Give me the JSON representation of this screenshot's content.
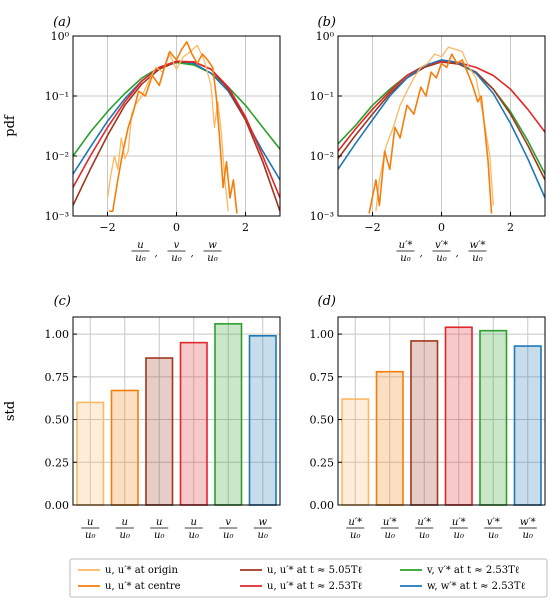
{
  "colors": {
    "origin": "#fdb863",
    "centre": "#f57e0b",
    "t505": "#a0361f",
    "t253_u": "#e3262a",
    "t253_v": "#2ca02c",
    "t253_w": "#1f77b4",
    "grid": "#c8c8c8"
  },
  "chart_data": [
    {
      "panel": "(a)",
      "type": "line",
      "ylabel": "pdf",
      "yscale": "log",
      "xlim": [
        -3,
        3
      ],
      "ylim": [
        0.001,
        1
      ],
      "x_ticks": [
        "−2",
        "0",
        "2"
      ],
      "y_ticks": [
        "10⁰",
        "10⁻¹",
        "10⁻²",
        "10⁻³"
      ],
      "xlabel_fracs": [
        [
          "u",
          "u₀"
        ],
        [
          "v",
          "u₀"
        ],
        [
          "w",
          "u₀"
        ]
      ],
      "series": [
        {
          "key": "t253_v",
          "x": [
            -3,
            -2.5,
            -2,
            -1.5,
            -1,
            -0.5,
            0,
            0.5,
            1,
            1.5,
            2,
            2.5,
            3
          ],
          "y": [
            0.01,
            0.025,
            0.055,
            0.11,
            0.2,
            0.3,
            0.36,
            0.33,
            0.24,
            0.14,
            0.07,
            0.03,
            0.013
          ]
        },
        {
          "key": "t253_w",
          "x": [
            -3,
            -2.5,
            -2,
            -1.5,
            -1,
            -0.5,
            0,
            0.5,
            1,
            1.5,
            2,
            2.5,
            3
          ],
          "y": [
            0.005,
            0.014,
            0.038,
            0.09,
            0.18,
            0.3,
            0.38,
            0.35,
            0.24,
            0.12,
            0.04,
            0.012,
            0.004
          ]
        },
        {
          "key": "t505",
          "x": [
            -3,
            -2.5,
            -2,
            -1.5,
            -1,
            -0.5,
            0,
            0.5,
            1,
            1.5,
            2,
            2.5,
            3
          ],
          "y": [
            0.0015,
            0.006,
            0.022,
            0.07,
            0.16,
            0.28,
            0.37,
            0.37,
            0.28,
            0.13,
            0.04,
            0.008,
            0.0012
          ]
        },
        {
          "key": "t253_u",
          "x": [
            -3,
            -2.5,
            -2,
            -1.5,
            -1,
            -0.5,
            0,
            0.5,
            1,
            1.5,
            2,
            2.5,
            3
          ],
          "y": [
            0.003,
            0.01,
            0.03,
            0.08,
            0.18,
            0.3,
            0.38,
            0.37,
            0.28,
            0.14,
            0.045,
            0.01,
            0.002
          ]
        },
        {
          "key": "origin",
          "x": [
            -2,
            -1.9,
            -1.8,
            -1.7,
            -1.6,
            -1.5,
            -1.4,
            -1.3,
            -1.2,
            -1.0,
            -0.8,
            -0.6,
            -0.4,
            -0.2,
            0,
            0.2,
            0.4,
            0.6,
            0.8,
            1.0,
            1.1,
            1.2,
            1.3,
            1.4,
            1.5
          ],
          "y": [
            0.002,
            0.005,
            0.01,
            0.006,
            0.02,
            0.009,
            0.012,
            0.05,
            0.07,
            0.1,
            0.18,
            0.3,
            0.25,
            0.5,
            0.28,
            0.45,
            0.55,
            0.7,
            0.4,
            0.15,
            0.03,
            0.08,
            0.025,
            0.004,
            0.0012
          ]
        },
        {
          "key": "centre",
          "x": [
            -1.95,
            -1.85,
            -1.7,
            -1.55,
            -1.4,
            -1.25,
            -1.1,
            -0.9,
            -0.7,
            -0.5,
            -0.35,
            -0.2,
            0,
            0.15,
            0.3,
            0.45,
            0.6,
            0.75,
            0.9,
            1.05,
            1.15,
            1.25,
            1.35,
            1.45,
            1.55,
            1.65,
            1.75
          ],
          "y": [
            0.0012,
            0.0012,
            0.004,
            0.012,
            0.03,
            0.055,
            0.12,
            0.1,
            0.22,
            0.15,
            0.3,
            0.55,
            0.4,
            0.6,
            0.8,
            0.5,
            0.35,
            0.5,
            0.4,
            0.3,
            0.1,
            0.02,
            0.003,
            0.008,
            0.002,
            0.004,
            0.0011
          ]
        }
      ]
    },
    {
      "panel": "(b)",
      "type": "line",
      "yscale": "log",
      "xlim": [
        -3,
        3
      ],
      "ylim": [
        0.001,
        1
      ],
      "x_ticks": [
        "−2",
        "0",
        "2"
      ],
      "y_ticks": [
        "10⁰",
        "10⁻¹",
        "10⁻²",
        "10⁻³"
      ],
      "xlabel_fracs": [
        [
          "u′*",
          "u₀"
        ],
        [
          "v′*",
          "u₀"
        ],
        [
          "w′*",
          "u₀"
        ]
      ],
      "series": [
        {
          "key": "t253_v",
          "x": [
            -3,
            -2.5,
            -2,
            -1.5,
            -1,
            -0.5,
            0,
            0.5,
            1,
            1.5,
            2,
            2.5,
            3
          ],
          "y": [
            0.016,
            0.032,
            0.07,
            0.13,
            0.22,
            0.32,
            0.38,
            0.35,
            0.24,
            0.13,
            0.055,
            0.018,
            0.005
          ]
        },
        {
          "key": "t505",
          "x": [
            -3,
            -2.5,
            -2,
            -1.5,
            -1,
            -0.5,
            0,
            0.5,
            1,
            1.5,
            2,
            2.5,
            3
          ],
          "y": [
            0.009,
            0.022,
            0.05,
            0.11,
            0.2,
            0.3,
            0.37,
            0.34,
            0.25,
            0.13,
            0.05,
            0.015,
            0.004
          ]
        },
        {
          "key": "t253_u",
          "x": [
            -3,
            -2.5,
            -2,
            -1.5,
            -1,
            -0.5,
            0,
            0.5,
            1,
            1.5,
            2,
            2.5,
            3
          ],
          "y": [
            0.012,
            0.028,
            0.06,
            0.12,
            0.22,
            0.32,
            0.38,
            0.36,
            0.3,
            0.22,
            0.13,
            0.06,
            0.025
          ]
        },
        {
          "key": "t253_w",
          "x": [
            -3,
            -2.5,
            -2,
            -1.5,
            -1,
            -0.5,
            0,
            0.5,
            1,
            1.5,
            2,
            2.5,
            3
          ],
          "y": [
            0.006,
            0.016,
            0.04,
            0.1,
            0.2,
            0.32,
            0.4,
            0.36,
            0.24,
            0.11,
            0.035,
            0.009,
            0.002
          ]
        },
        {
          "key": "origin",
          "x": [
            -1.9,
            -1.8,
            -1.6,
            -1.4,
            -1.2,
            -1.0,
            -0.8,
            -0.6,
            -0.4,
            -0.2,
            0,
            0.2,
            0.4,
            0.6,
            0.8,
            1.0,
            1.2,
            1.4,
            1.5
          ],
          "y": [
            0.0012,
            0.004,
            0.015,
            0.03,
            0.07,
            0.12,
            0.2,
            0.3,
            0.35,
            0.5,
            0.45,
            0.65,
            0.6,
            0.55,
            0.3,
            0.2,
            0.05,
            0.01,
            0.0015
          ]
        },
        {
          "key": "centre",
          "x": [
            -2.1,
            -1.9,
            -1.8,
            -1.65,
            -1.5,
            -1.35,
            -1.2,
            -1.0,
            -0.8,
            -0.6,
            -0.45,
            -0.3,
            -0.15,
            0,
            0.15,
            0.3,
            0.45,
            0.6,
            0.75,
            0.9,
            1.05,
            1.15,
            1.25,
            1.35,
            1.45
          ],
          "y": [
            0.0011,
            0.004,
            0.0015,
            0.012,
            0.006,
            0.03,
            0.02,
            0.07,
            0.05,
            0.14,
            0.1,
            0.25,
            0.2,
            0.35,
            0.3,
            0.5,
            0.35,
            0.4,
            0.25,
            0.15,
            0.08,
            0.1,
            0.03,
            0.008,
            0.0011
          ]
        }
      ]
    },
    {
      "panel": "(c)",
      "type": "bar",
      "ylabel": "std",
      "ylim": [
        0,
        1.1
      ],
      "y_ticks": [
        "0.00",
        "0.25",
        "0.50",
        "0.75",
        "1.00"
      ],
      "category_fracs": [
        [
          "u",
          "u₀"
        ],
        [
          "u",
          "u₀"
        ],
        [
          "u",
          "u₀"
        ],
        [
          "u",
          "u₀"
        ],
        [
          "v",
          "u₀"
        ],
        [
          "w",
          "u₀"
        ]
      ],
      "keys": [
        "origin",
        "centre",
        "t505",
        "t253_u",
        "t253_v",
        "t253_w"
      ],
      "values": [
        0.6,
        0.67,
        0.86,
        0.95,
        1.06,
        0.99
      ]
    },
    {
      "panel": "(d)",
      "type": "bar",
      "ylim": [
        0,
        1.1
      ],
      "y_ticks": [
        "0.00",
        "0.25",
        "0.50",
        "0.75",
        "1.00"
      ],
      "category_fracs": [
        [
          "u′*",
          "u₀"
        ],
        [
          "u′*",
          "u₀"
        ],
        [
          "u′*",
          "u₀"
        ],
        [
          "u′*",
          "u₀"
        ],
        [
          "v′*",
          "u₀"
        ],
        [
          "w′*",
          "u₀"
        ]
      ],
      "keys": [
        "origin",
        "centre",
        "t505",
        "t253_u",
        "t253_v",
        "t253_w"
      ],
      "values": [
        0.62,
        0.78,
        0.96,
        1.04,
        1.02,
        0.93
      ]
    }
  ],
  "legend": [
    {
      "key": "origin",
      "label": "u, u′* at origin"
    },
    {
      "key": "t505",
      "label": "u, u′* at t ≈ 5.05Tℓ"
    },
    {
      "key": "t253_v",
      "label": "v, v′* at t ≈ 2.53Tℓ"
    },
    {
      "key": "centre",
      "label": "u, u′* at centre"
    },
    {
      "key": "t253_u",
      "label": "u, u′* at t ≈ 2.53Tℓ"
    },
    {
      "key": "t253_w",
      "label": "w, w′* at t ≈ 2.53Tℓ"
    }
  ]
}
